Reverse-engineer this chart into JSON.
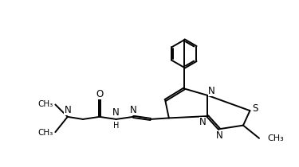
{
  "bg_color": "#ffffff",
  "line_color": "#000000",
  "line_width": 1.4,
  "font_size": 8.5,
  "figsize": [
    3.75,
    2.1
  ],
  "dpi": 100,
  "xlim": [
    0,
    10
  ],
  "ylim": [
    0,
    5.6
  ]
}
